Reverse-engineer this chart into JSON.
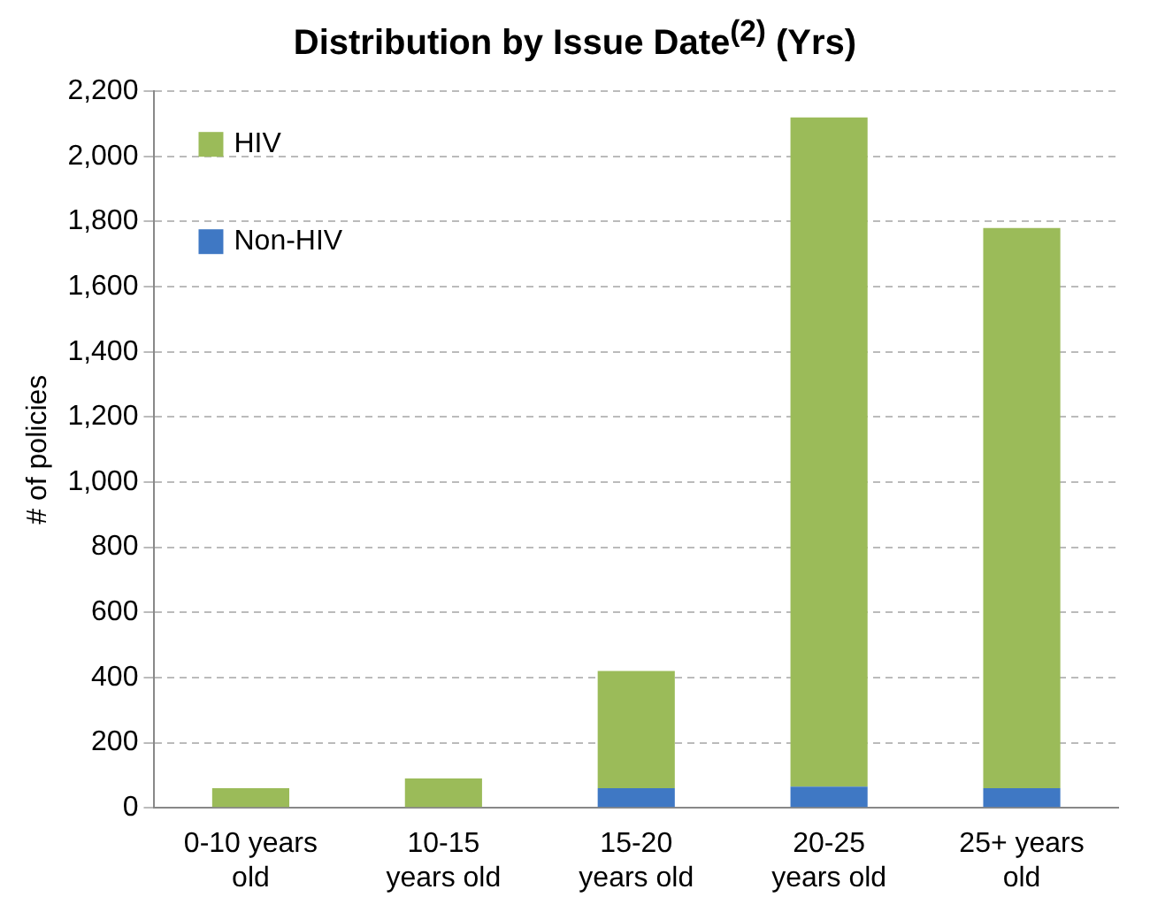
{
  "chart_data": {
    "type": "bar",
    "title": "Distribution by Issue Date$^{(2)}$ (Yrs)",
    "ylabel": "# of policies",
    "categories": [
      "0-10 years old",
      "10-15 years old",
      "15-20 years old",
      "20-25 years old",
      "25+ years old"
    ],
    "series": [
      {
        "name": "Non-HIV",
        "color": "#3f78c4",
        "values": [
          0,
          0,
          60,
          65,
          60
        ]
      },
      {
        "name": "HIV",
        "color": "#9bbb59",
        "values": [
          60,
          90,
          360,
          2055,
          1720
        ]
      }
    ],
    "stacked": true,
    "ylim": [
      0,
      2200
    ],
    "yticks": [
      0,
      200,
      400,
      600,
      800,
      {
        "value": 1000,
        "label": "1,000"
      },
      {
        "value": 1200,
        "label": "1,200"
      },
      {
        "value": 1400,
        "label": "1,400"
      },
      {
        "value": 1600,
        "label": "1,600"
      },
      {
        "value": 1800,
        "label": "1,800"
      },
      {
        "value": 2000,
        "label": "2,000"
      },
      {
        "value": 2200,
        "label": "2,200"
      }
    ],
    "grid": "y",
    "legend": "top left"
  }
}
